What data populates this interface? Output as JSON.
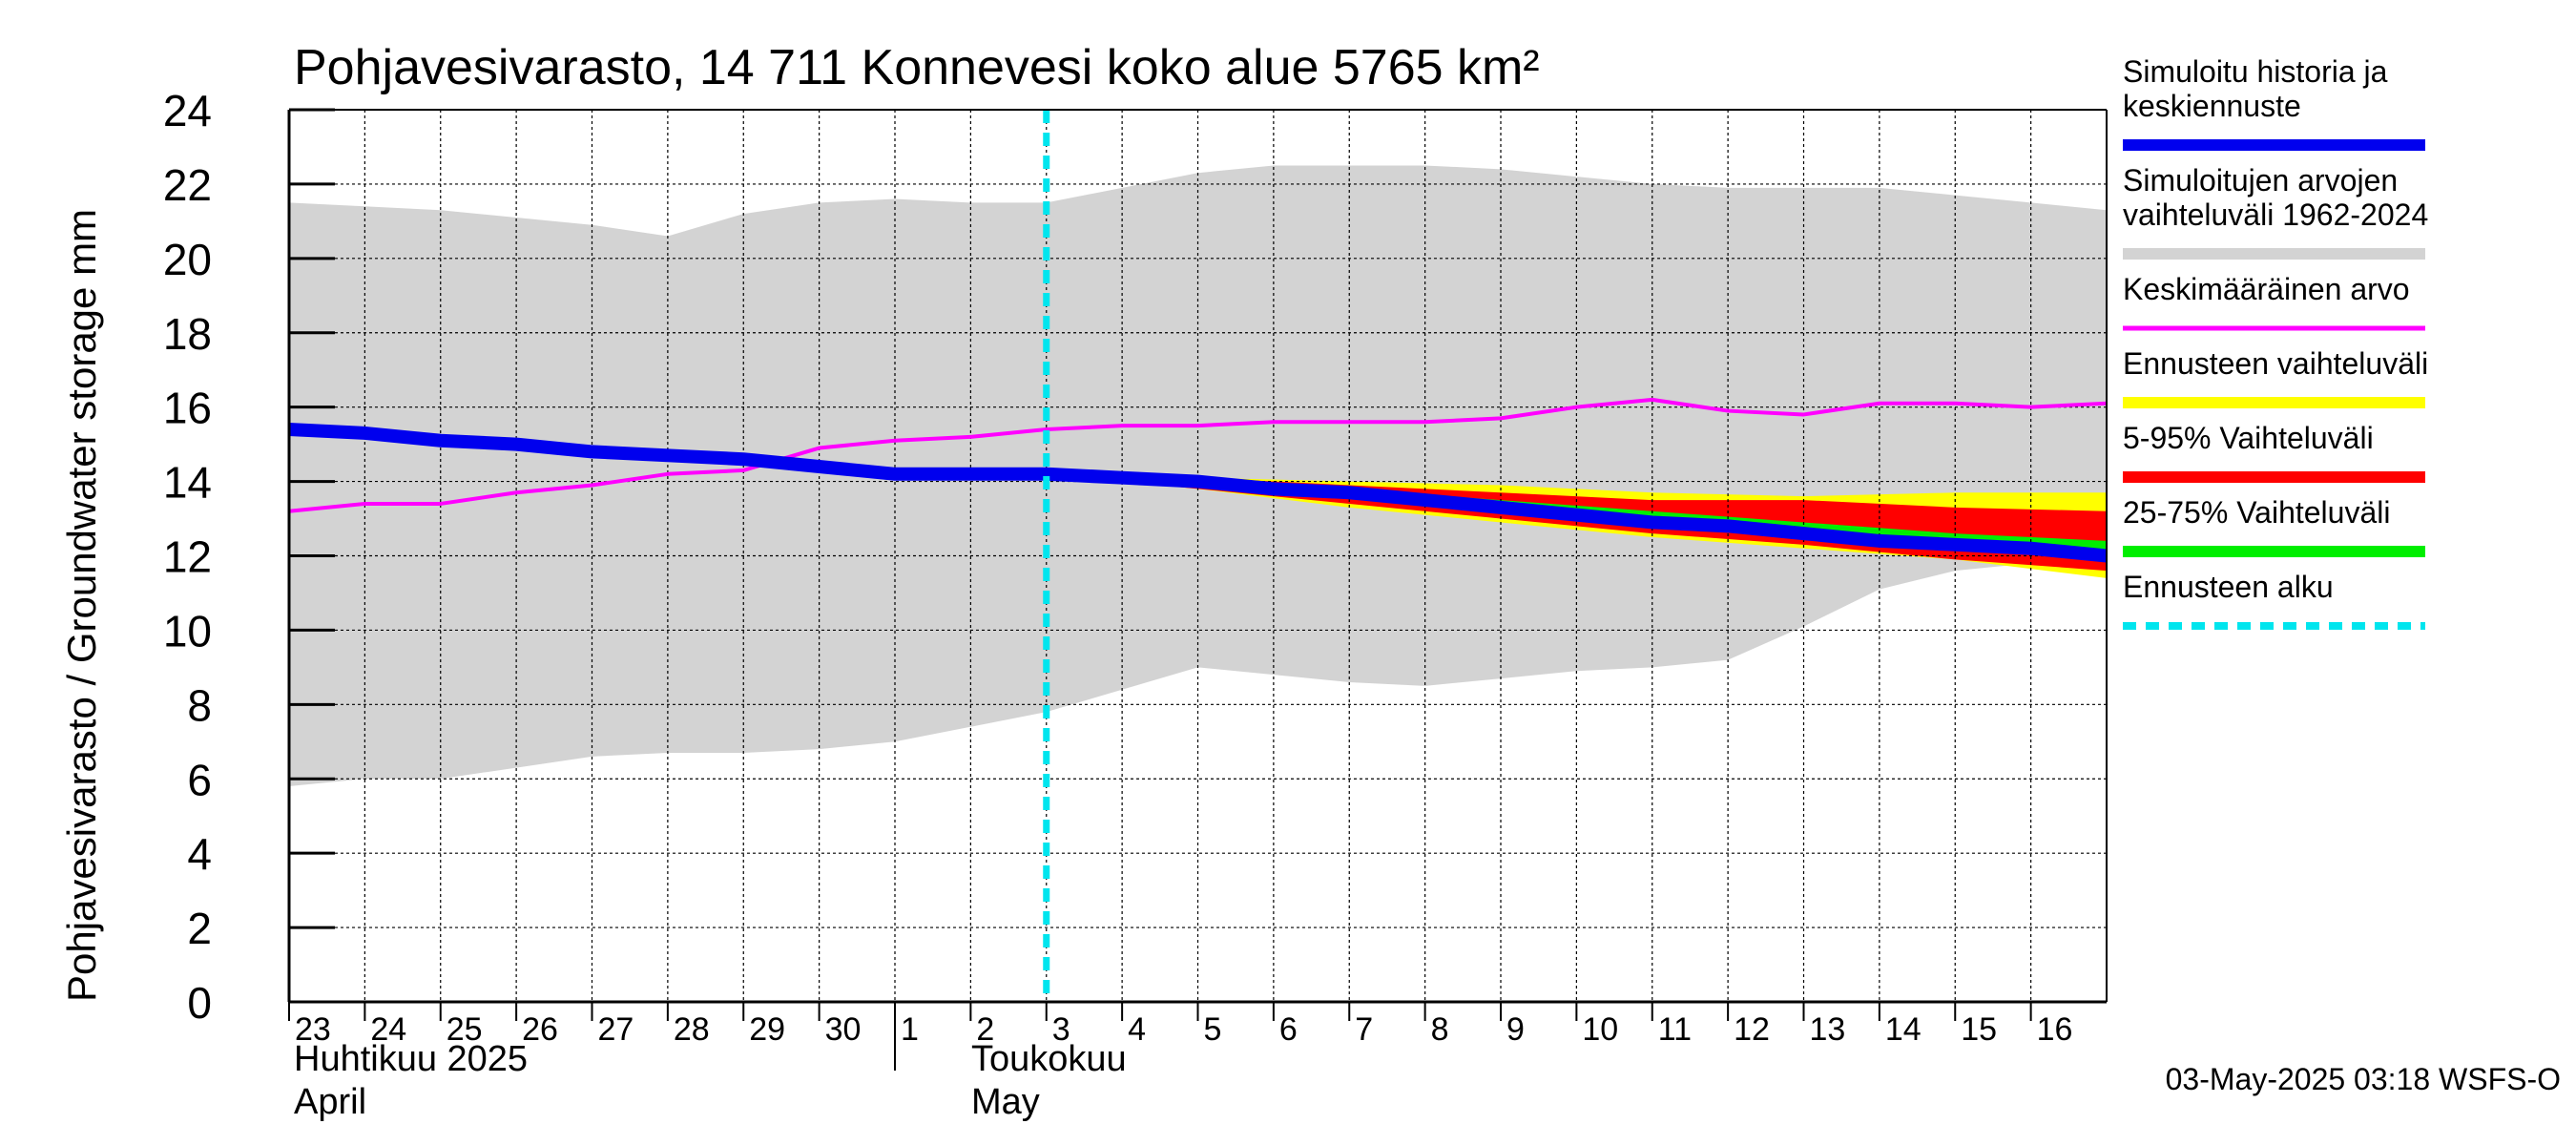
{
  "chart_data": {
    "type": "area",
    "title": "Pohjavesivarasto, 14 711 Konnevesi koko alue 5765 km²",
    "ylabel": "Pohjavesivarasto / Groundwater storage   mm",
    "ylim": [
      0,
      24
    ],
    "yticks": [
      "0",
      "2",
      "4",
      "6",
      "8",
      "10",
      "12",
      "14",
      "16",
      "18",
      "20",
      "22",
      "24"
    ],
    "xdays": [
      "23",
      "24",
      "25",
      "26",
      "27",
      "28",
      "29",
      "30",
      "1",
      "2",
      "3",
      "4",
      "5",
      "6",
      "7",
      "8",
      "9",
      "10",
      "11",
      "12",
      "13",
      "14",
      "15",
      "16"
    ],
    "months": [
      {
        "fi": "Huhtikuu  2025",
        "en": "April"
      },
      {
        "fi": "Toukokuu",
        "en": "May"
      }
    ],
    "x_range_days": [
      0,
      24
    ],
    "forecast_start_day": 10,
    "series": [
      {
        "name": "Simuloitujen arvojen vaihteluväli 1962-2024",
        "kind": "band",
        "color": "#d3d3d3",
        "x": [
          0,
          1,
          2,
          3,
          4,
          5,
          6,
          7,
          8,
          9,
          10,
          11,
          12,
          13,
          14,
          15,
          16,
          17,
          18,
          19,
          20,
          21,
          22,
          23,
          24
        ],
        "upper": [
          21.5,
          21.4,
          21.3,
          21.1,
          20.9,
          20.6,
          21.2,
          21.5,
          21.6,
          21.5,
          21.5,
          21.9,
          22.3,
          22.5,
          22.5,
          22.5,
          22.4,
          22.2,
          22.0,
          21.9,
          21.9,
          21.9,
          21.7,
          21.5,
          21.3
        ],
        "lower": [
          5.8,
          6.0,
          6.0,
          6.3,
          6.6,
          6.7,
          6.7,
          6.8,
          7.0,
          7.4,
          7.8,
          8.4,
          9.0,
          8.8,
          8.6,
          8.5,
          8.7,
          8.9,
          9.0,
          9.2,
          10.1,
          11.1,
          11.6,
          11.8,
          11.9
        ]
      },
      {
        "name": "Ennusteen vaihteluväli",
        "kind": "band",
        "color": "#ffff00",
        "x": [
          10,
          12,
          14,
          16,
          18,
          20,
          22,
          24
        ],
        "upper": [
          14.3,
          14.1,
          14.0,
          13.9,
          13.7,
          13.6,
          13.7,
          13.7
        ],
        "lower": [
          14.2,
          13.8,
          13.3,
          12.9,
          12.5,
          12.2,
          11.9,
          11.4
        ]
      },
      {
        "name": "5-95% Vaihteluväli",
        "kind": "band",
        "color": "#ff0000",
        "x": [
          10,
          12,
          14,
          16,
          18,
          20,
          22,
          24
        ],
        "upper": [
          14.3,
          14.1,
          13.9,
          13.7,
          13.5,
          13.5,
          13.3,
          13.2
        ],
        "lower": [
          14.2,
          13.8,
          13.4,
          13.0,
          12.6,
          12.3,
          11.9,
          11.6
        ]
      },
      {
        "name": "25-75% Vaihteluväli",
        "kind": "band",
        "color": "#00ee00",
        "x": [
          10,
          12,
          14,
          16,
          18,
          20,
          22,
          24
        ],
        "upper": [
          14.3,
          14.0,
          13.8,
          13.5,
          13.2,
          12.9,
          12.6,
          12.4
        ],
        "lower": [
          14.2,
          13.9,
          13.6,
          13.2,
          12.8,
          12.5,
          12.2,
          11.9
        ]
      },
      {
        "name": "Keskimääräinen arvo",
        "kind": "line",
        "color": "#ff00ff",
        "x": [
          0,
          1,
          2,
          3,
          4,
          5,
          6,
          7,
          8,
          9,
          10,
          11,
          12,
          13,
          14,
          15,
          16,
          17,
          18,
          19,
          20,
          21,
          22,
          23,
          24
        ],
        "y": [
          13.2,
          13.4,
          13.4,
          13.7,
          13.9,
          14.2,
          14.3,
          14.9,
          15.1,
          15.2,
          15.4,
          15.5,
          15.5,
          15.6,
          15.6,
          15.6,
          15.7,
          16.0,
          16.2,
          15.9,
          15.8,
          16.1,
          16.1,
          16.0,
          16.1
        ]
      },
      {
        "name": "Simuloitu historia ja keskiennuste",
        "kind": "line",
        "color": "#0000ee",
        "x": [
          0,
          1,
          2,
          3,
          4,
          5,
          6,
          7,
          8,
          9,
          10,
          11,
          12,
          13,
          14,
          15,
          16,
          17,
          18,
          19,
          20,
          21,
          22,
          23,
          24
        ],
        "y": [
          15.4,
          15.3,
          15.1,
          15.0,
          14.8,
          14.7,
          14.6,
          14.4,
          14.2,
          14.2,
          14.2,
          14.1,
          14.0,
          13.8,
          13.7,
          13.5,
          13.3,
          13.1,
          12.9,
          12.8,
          12.6,
          12.4,
          12.3,
          12.2,
          12.0
        ]
      }
    ],
    "legend": [
      {
        "label": "Simuloitu historia ja keskiennuste",
        "color": "#0000ee",
        "style": "solid"
      },
      {
        "label": "Simuloitujen arvojen vaihteluväli 1962-2024",
        "color": "#d3d3d3",
        "style": "solid"
      },
      {
        "label": "Keskimääräinen arvo",
        "color": "#ff00ff",
        "style": "solid"
      },
      {
        "label": "Ennusteen vaihteluväli",
        "color": "#ffff00",
        "style": "solid"
      },
      {
        "label": "5-95% Vaihteluväli",
        "color": "#ff0000",
        "style": "solid"
      },
      {
        "label": "25-75% Vaihteluväli",
        "color": "#00ee00",
        "style": "solid"
      },
      {
        "label": "Ennusteen alku",
        "color": "#00e5ee",
        "style": "dashed"
      }
    ],
    "legend_position": "right",
    "forecast_line_color": "#00e5ee",
    "footer": "03-May-2025 03:18 WSFS-O"
  }
}
